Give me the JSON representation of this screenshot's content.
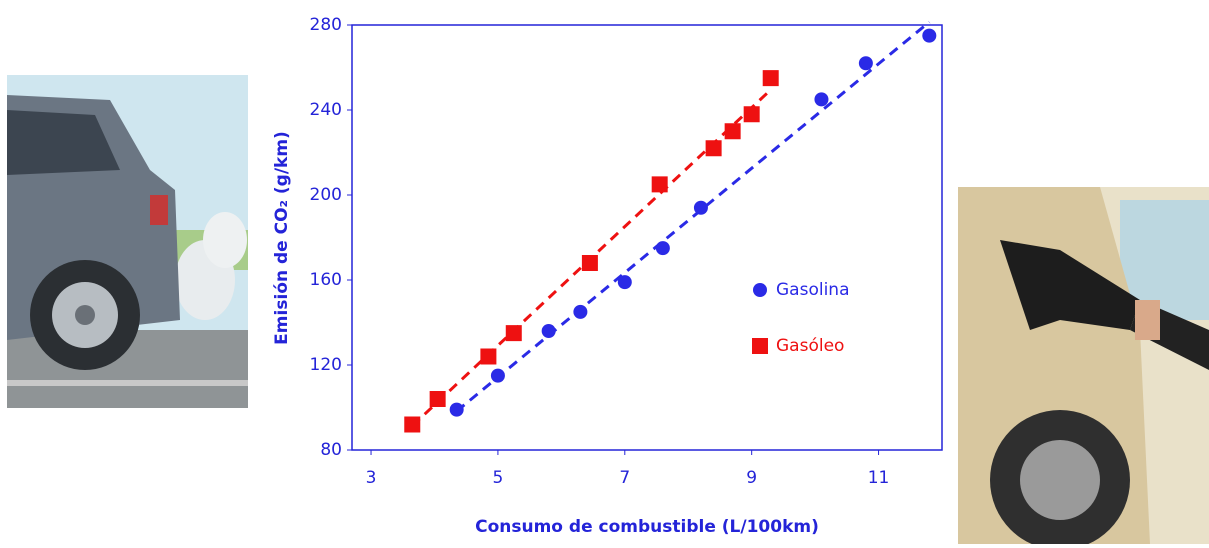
{
  "chart_data": {
    "type": "scatter",
    "x_label": "Consumo de combustible (L/100km)",
    "y_label": "Emisión de CO₂ (g/km)",
    "xlim": [
      2.7,
      12
    ],
    "xticks": [
      3,
      5,
      7,
      9,
      11
    ],
    "ylim": [
      80,
      280
    ],
    "yticks": [
      80,
      120,
      160,
      200,
      240,
      280
    ],
    "trend_lines": true,
    "series": [
      {
        "name": "Gasolina",
        "color": "#2a2ae6",
        "marker": "circle",
        "x": [
          4.35,
          5.0,
          5.8,
          6.3,
          7.0,
          7.6,
          8.2,
          10.1,
          10.8,
          11.8
        ],
        "values": [
          99,
          115,
          136,
          145,
          159,
          175,
          194,
          245,
          262,
          275
        ]
      },
      {
        "name": "Gasóleo",
        "color": "#ee1111",
        "marker": "square",
        "x": [
          3.65,
          4.05,
          4.85,
          5.25,
          6.45,
          7.55,
          8.4,
          8.7,
          9.0,
          9.3
        ],
        "values": [
          92,
          104,
          124,
          135,
          168,
          205,
          222,
          230,
          238,
          255
        ]
      }
    ]
  }
}
